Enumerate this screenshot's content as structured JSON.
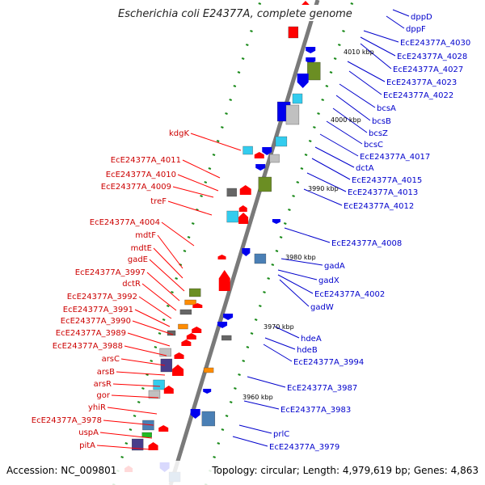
{
  "title": "Escherichia coli E24377A, complete genome",
  "footer": {
    "accession": "Accession: NC_009801",
    "topology": "Topology: circular; Length: 4,979,619 bp; Genes: 4,863"
  },
  "colors": {
    "reverse_gene_label": "#cc0000",
    "forward_gene_label": "#0000cc",
    "backbone": "#7a7a7a",
    "tick": "#1a8a1a"
  },
  "kbp_ticks": [
    "4010 kbp",
    "4000 kbp",
    "3990 kbp",
    "3980 kbp",
    "3970 kbp",
    "3960 kbp"
  ],
  "left_labels": [
    "kdgK",
    "EcE24377A_4011",
    "EcE24377A_4010",
    "EcE24377A_4009",
    "treF",
    "EcE24377A_4004",
    "mdtF",
    "mdtE",
    "gadE",
    "EcE24377A_3997",
    "dctR",
    "EcE24377A_3992",
    "EcE24377A_3991",
    "EcE24377A_3990",
    "EcE24377A_3989",
    "EcE24377A_3988",
    "arsC",
    "arsB",
    "arsR",
    "gor",
    "yhiR",
    "EcE24377A_3978",
    "uspA",
    "pitA"
  ],
  "right_labels": [
    "dppD",
    "dppF",
    "EcE24377A_4030",
    "EcE24377A_4028",
    "EcE24377A_4027",
    "EcE24377A_4023",
    "EcE24377A_4022",
    "bcsA",
    "bcsB",
    "bcsZ",
    "bcsC",
    "EcE24377A_4017",
    "dctA",
    "EcE24377A_4015",
    "EcE24377A_4013",
    "EcE24377A_4012",
    "EcE24377A_4008",
    "gadA",
    "gadX",
    "EcE24377A_4002",
    "gadW",
    "hdeA",
    "hdeB",
    "EcE24377A_3994",
    "EcE24377A_3987",
    "EcE24377A_3983",
    "prlC",
    "EcE24377A_3979"
  ]
}
